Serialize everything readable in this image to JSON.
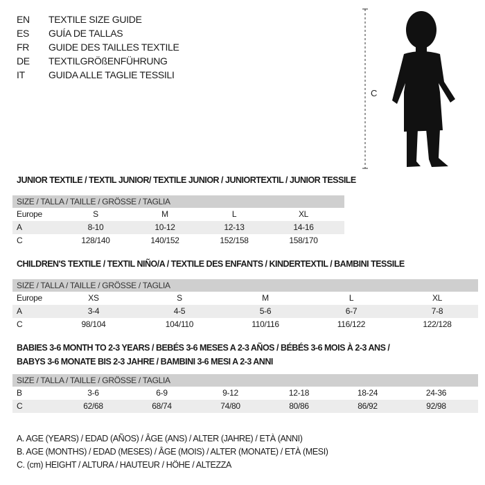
{
  "languages": [
    {
      "code": "EN",
      "title": "TEXTILE SIZE GUIDE"
    },
    {
      "code": "ES",
      "title": "GUÍA DE TALLAS"
    },
    {
      "code": "FR",
      "title": "GUIDE DES TAILLES TEXTILE"
    },
    {
      "code": "DE",
      "title": "TEXTILGRÖßENFÜHRUNG"
    },
    {
      "code": "IT",
      "title": "GUIDA ALLE TAGLIE TESSILI"
    }
  ],
  "figure": {
    "measure_label": "C",
    "icon": "child-silhouette"
  },
  "junior": {
    "title": "JUNIOR TEXTILE / TEXTIL JUNIOR/ TEXTILE JUNIOR / JUNIORTEXTIL / JUNIOR TESSILE",
    "header": "SIZE / TALLA / TAILLE / GRÖSSE / TAGLIA",
    "rows": [
      [
        "Europe",
        "S",
        "M",
        "L",
        "XL"
      ],
      [
        "A",
        "8-10",
        "10-12",
        "12-13",
        "14-16"
      ],
      [
        "C",
        "128/140",
        "140/152",
        "152/158",
        "158/170"
      ]
    ]
  },
  "children": {
    "title": "CHILDREN'S TEXTILE / TEXTIL NIÑO/A / TEXTILE DES ENFANTS / KINDERTEXTIL / BAMBINI TESSILE",
    "header": "SIZE / TALLA / TAILLE / GRÖSSE / TAGLIA",
    "rows": [
      [
        "Europe",
        "XS",
        "S",
        "M",
        "L",
        "XL"
      ],
      [
        "A",
        "3-4",
        "4-5",
        "5-6",
        "6-7",
        "7-8"
      ],
      [
        "C",
        "98/104",
        "104/110",
        "110/116",
        "116/122",
        "122/128"
      ]
    ]
  },
  "babies": {
    "title_line1": "BABIES 3-6 MONTH TO 2-3 YEARS / BEBÉS 3-6 MESES A 2-3 AÑOS / BÉBÉS 3-6 MOIS À 2-3 ANS /",
    "title_line2": "BABYS 3-6 MONATE BIS 2-3 JAHRE / BAMBINI 3-6 MESI A 2-3 ANNI",
    "header": "SIZE / TALLA / TAILLE / GRÖSSE / TAGLIA",
    "rows": [
      [
        "B",
        "3-6",
        "6-9",
        "9-12",
        "12-18",
        "18-24",
        "24-36"
      ],
      [
        "C",
        "62/68",
        "68/74",
        "74/80",
        "80/86",
        "86/92",
        "92/98"
      ]
    ]
  },
  "legend": [
    "A. AGE (YEARS) / EDAD (AÑOS) / ÂGE (ANS) / ALTER (JAHRE) / ETÀ (ANNI)",
    "B. AGE (MONTHS) / EDAD (MESES) / ÂGE (MOIS) / ALTER (MONATE) / ETÀ (MESI)",
    "C. (cm) HEIGHT / ALTURA / HAUTEUR / HÖHE / ALTEZZA"
  ]
}
